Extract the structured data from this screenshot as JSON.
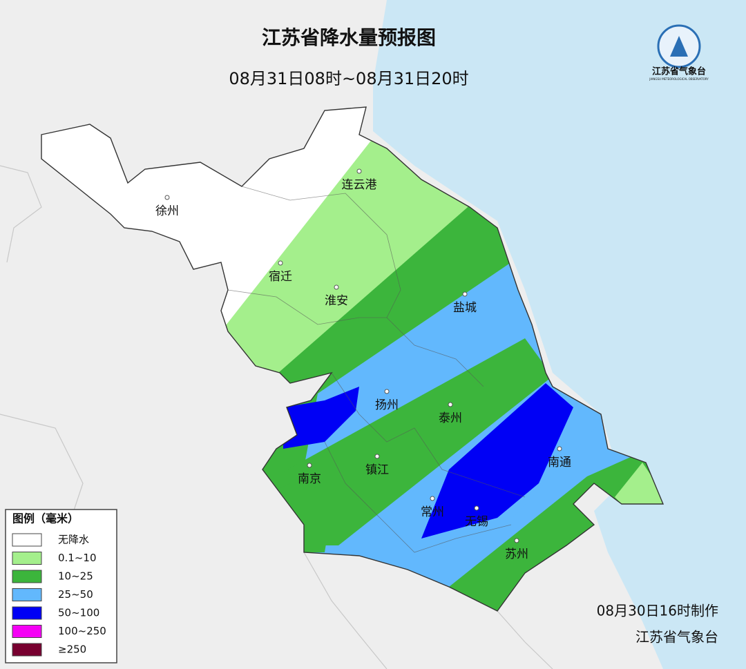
{
  "header": {
    "title": "江苏省降水量预报图",
    "subtitle": "08月31日08时~08月31日20时"
  },
  "logo": {
    "name": "江苏省气象台",
    "subtitle": "JIANGSU METEOROLOGICAL OBSERVATORY"
  },
  "cities": [
    {
      "label": "连云港"
    },
    {
      "label": "徐州"
    },
    {
      "label": "宿迁"
    },
    {
      "label": "淮安"
    },
    {
      "label": "盐城"
    },
    {
      "label": "扬州"
    },
    {
      "label": "泰州"
    },
    {
      "label": "南通"
    },
    {
      "label": "南京"
    },
    {
      "label": "镇江"
    },
    {
      "label": "常州"
    },
    {
      "label": "无锡"
    },
    {
      "label": "苏州"
    }
  ],
  "legend": {
    "title": "图例（毫米）",
    "items": [
      {
        "label": "无降水",
        "color": "#ffffff"
      },
      {
        "label": "0.1~10",
        "color": "#a4ef8c"
      },
      {
        "label": "10~25",
        "color": "#3cb53c"
      },
      {
        "label": "25~50",
        "color": "#62b8fd"
      },
      {
        "label": "50~100",
        "color": "#0000f5"
      },
      {
        "label": "100~250",
        "color": "#f500f5"
      },
      {
        "label": "≥250",
        "color": "#780030"
      }
    ]
  },
  "footer": {
    "made": "08月30日16时制作",
    "issuer": "江苏省气象台"
  }
}
